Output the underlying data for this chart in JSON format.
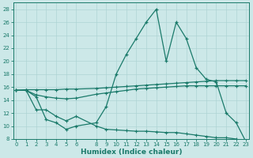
{
  "bg_color": "#cce8e8",
  "line_color": "#1a7a6a",
  "grid_color": "#aed4d4",
  "xlabel": "Humidex (Indice chaleur)",
  "ylim": [
    8,
    29
  ],
  "xlim": [
    -0.3,
    23.3
  ],
  "yticks": [
    8,
    10,
    12,
    14,
    16,
    18,
    20,
    22,
    24,
    26,
    28
  ],
  "xtick_positions": [
    0,
    1,
    2,
    3,
    4,
    5,
    6,
    8,
    9,
    10,
    11,
    12,
    13,
    14,
    15,
    16,
    17,
    18,
    19,
    20,
    21,
    22,
    23
  ],
  "xtick_labels": [
    "0",
    "1",
    "2",
    "3",
    "4",
    "5",
    "6",
    "8",
    "9",
    "10",
    "11",
    "12",
    "13",
    "14",
    "15",
    "16",
    "17",
    "18",
    "19",
    "20",
    "21",
    "22",
    "23"
  ],
  "line1_x": [
    0,
    1,
    2,
    3,
    4,
    5,
    6,
    8,
    9,
    10,
    11,
    12,
    13,
    14,
    15,
    16,
    17,
    18,
    19,
    20,
    21,
    22,
    23
  ],
  "line1_y": [
    15.5,
    15.5,
    14.5,
    11.0,
    10.5,
    9.5,
    10.0,
    10.5,
    13.0,
    18.0,
    21.0,
    23.5,
    26.0,
    28.0,
    20.0,
    26.0,
    23.5,
    19.0,
    17.2,
    16.8,
    12.0,
    10.5,
    7.5
  ],
  "line2_x": [
    0,
    1,
    2,
    3,
    4,
    5,
    6,
    8,
    9,
    10,
    11,
    12,
    13,
    14,
    15,
    16,
    17,
    18,
    19,
    20,
    21,
    22,
    23
  ],
  "line2_y": [
    15.5,
    15.6,
    15.6,
    15.6,
    15.6,
    15.7,
    15.7,
    15.8,
    15.9,
    16.0,
    16.1,
    16.2,
    16.3,
    16.4,
    16.5,
    16.6,
    16.7,
    16.8,
    16.9,
    17.0,
    17.0,
    17.0,
    17.0
  ],
  "line3_x": [
    0,
    1,
    2,
    3,
    4,
    5,
    6,
    8,
    9,
    10,
    11,
    12,
    13,
    14,
    15,
    16,
    17,
    18,
    19,
    20,
    21,
    22,
    23
  ],
  "line3_y": [
    15.5,
    15.5,
    14.8,
    14.5,
    14.3,
    14.2,
    14.3,
    14.9,
    15.1,
    15.3,
    15.5,
    15.7,
    15.8,
    15.9,
    16.0,
    16.1,
    16.2,
    16.2,
    16.2,
    16.2,
    16.2,
    16.2,
    16.2
  ],
  "line4_x": [
    0,
    1,
    2,
    3,
    4,
    5,
    6,
    8,
    9,
    10,
    11,
    12,
    13,
    14,
    15,
    16,
    17,
    18,
    19,
    20,
    21,
    22,
    23
  ],
  "line4_y": [
    15.5,
    15.5,
    12.5,
    12.5,
    11.5,
    10.8,
    11.5,
    10.0,
    9.5,
    9.4,
    9.3,
    9.2,
    9.2,
    9.1,
    9.0,
    9.0,
    8.8,
    8.6,
    8.4,
    8.2,
    8.2,
    8.0,
    7.5
  ]
}
